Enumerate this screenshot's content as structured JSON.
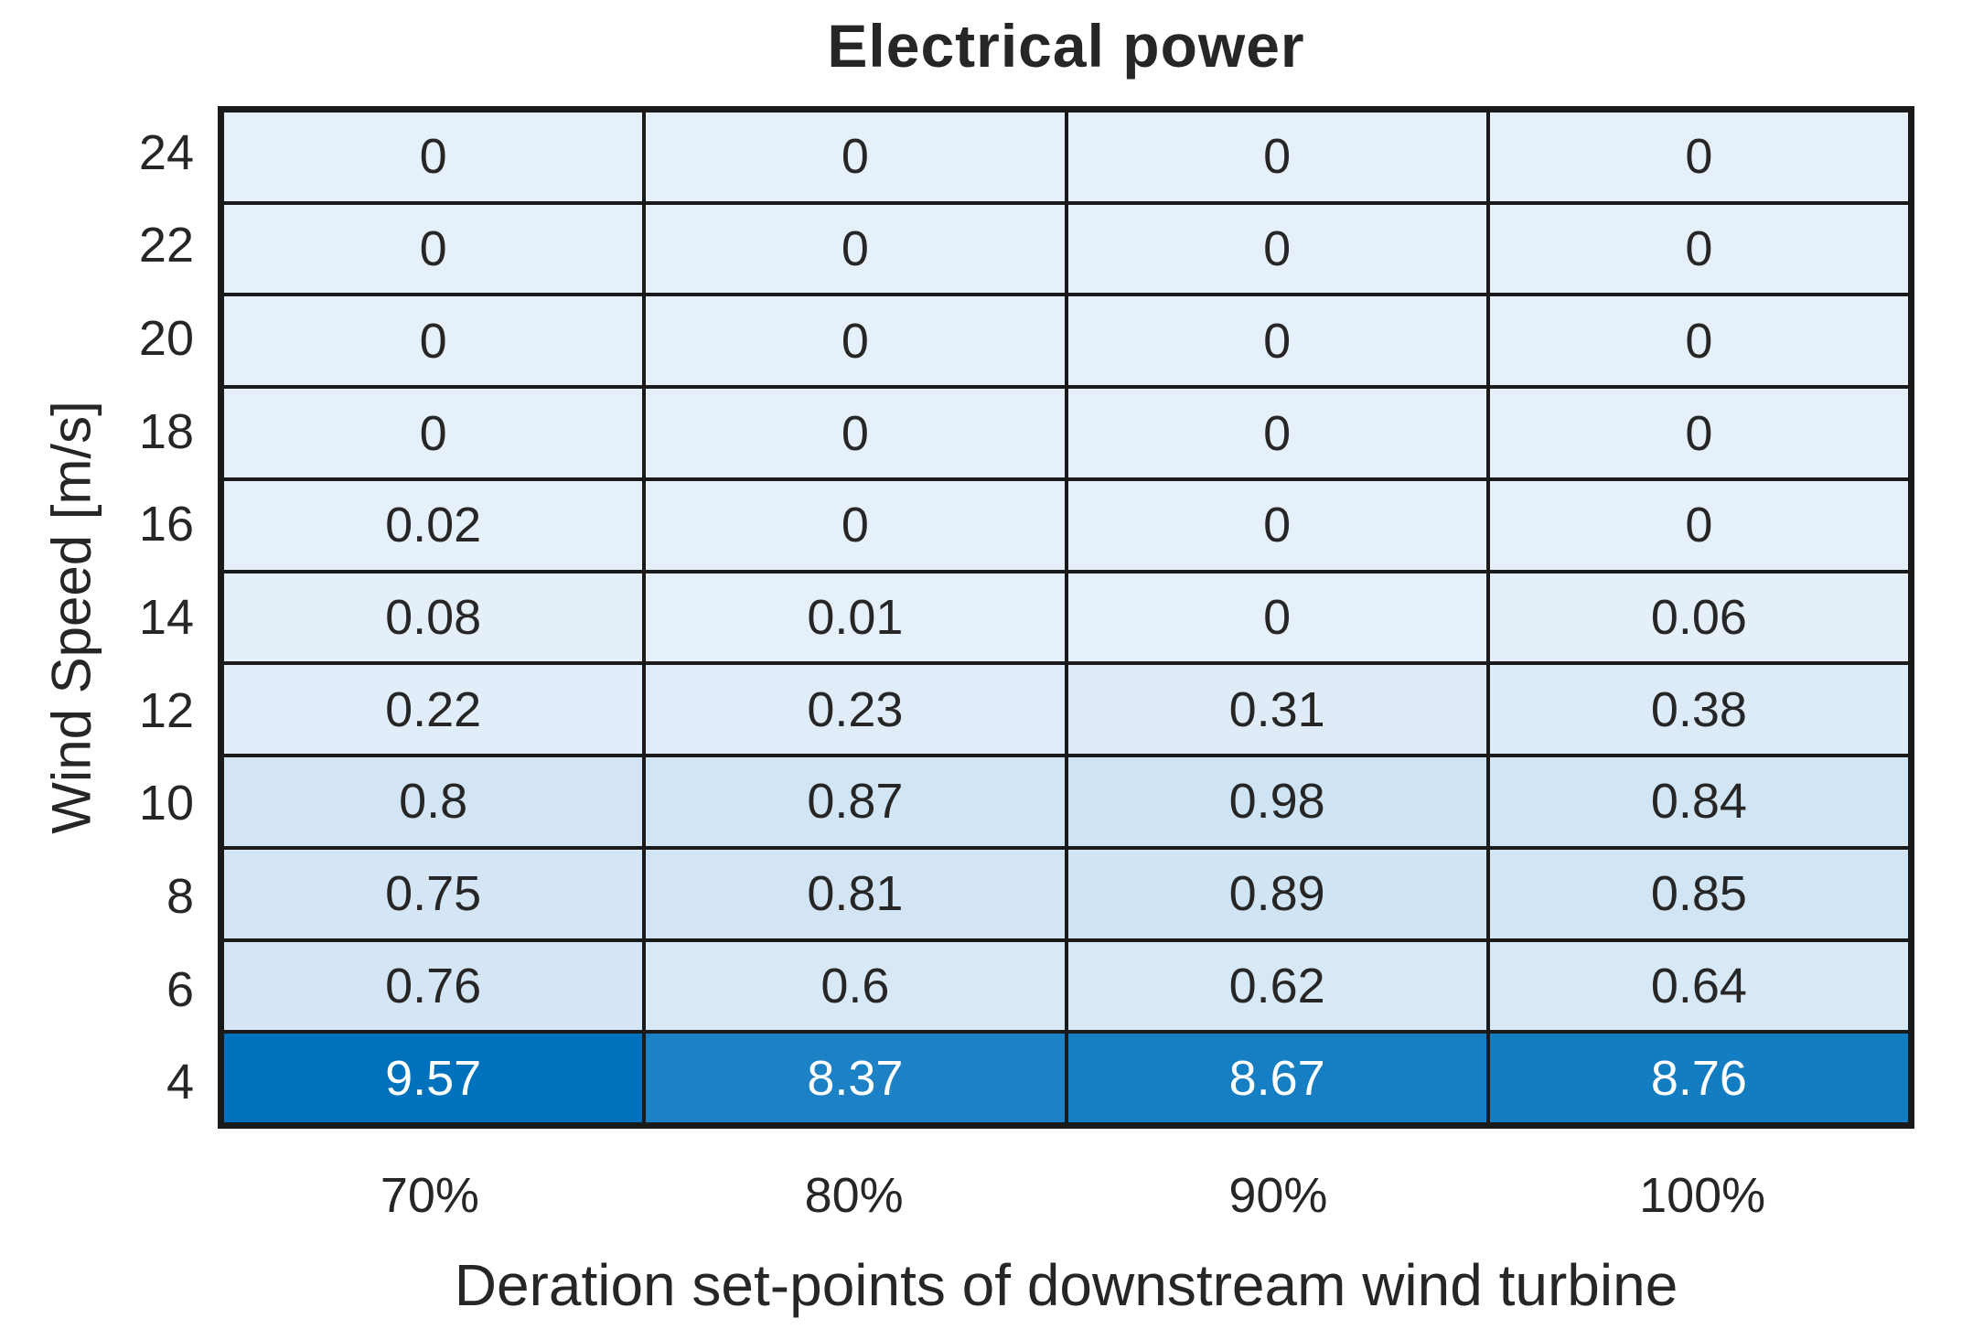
{
  "title": "Electrical power",
  "xlabel": "Deration set-points of downstream wind turbine",
  "ylabel": "Wind Speed [m/s]",
  "chart_data": {
    "type": "heatmap",
    "title": "Electrical power",
    "xlabel": "Deration set-points of downstream wind turbine",
    "ylabel": "Wind Speed [m/s]",
    "x_categories": [
      "70%",
      "80%",
      "90%",
      "100%"
    ],
    "y_categories": [
      "24",
      "22",
      "20",
      "18",
      "16",
      "14",
      "12",
      "10",
      "8",
      "6",
      "4"
    ],
    "values": [
      [
        0,
        0,
        0,
        0
      ],
      [
        0,
        0,
        0,
        0
      ],
      [
        0,
        0,
        0,
        0
      ],
      [
        0,
        0,
        0,
        0
      ],
      [
        0.02,
        0,
        0,
        0
      ],
      [
        0.08,
        0.01,
        0,
        0.06
      ],
      [
        0.22,
        0.23,
        0.31,
        0.38
      ],
      [
        0.8,
        0.87,
        0.98,
        0.84
      ],
      [
        0.75,
        0.81,
        0.89,
        0.85
      ],
      [
        0.76,
        0.6,
        0.62,
        0.64
      ],
      [
        9.57,
        8.37,
        8.67,
        8.76
      ]
    ],
    "value_range": [
      0,
      9.57
    ],
    "colormap": {
      "min_color": "#E6F0FA",
      "max_color": "#0072BD"
    },
    "grid_line_color": "#1A1A1A",
    "cell_text_dark": "#262626",
    "cell_text_light": "#FFFFFF",
    "legend": "none",
    "grid": "on"
  }
}
